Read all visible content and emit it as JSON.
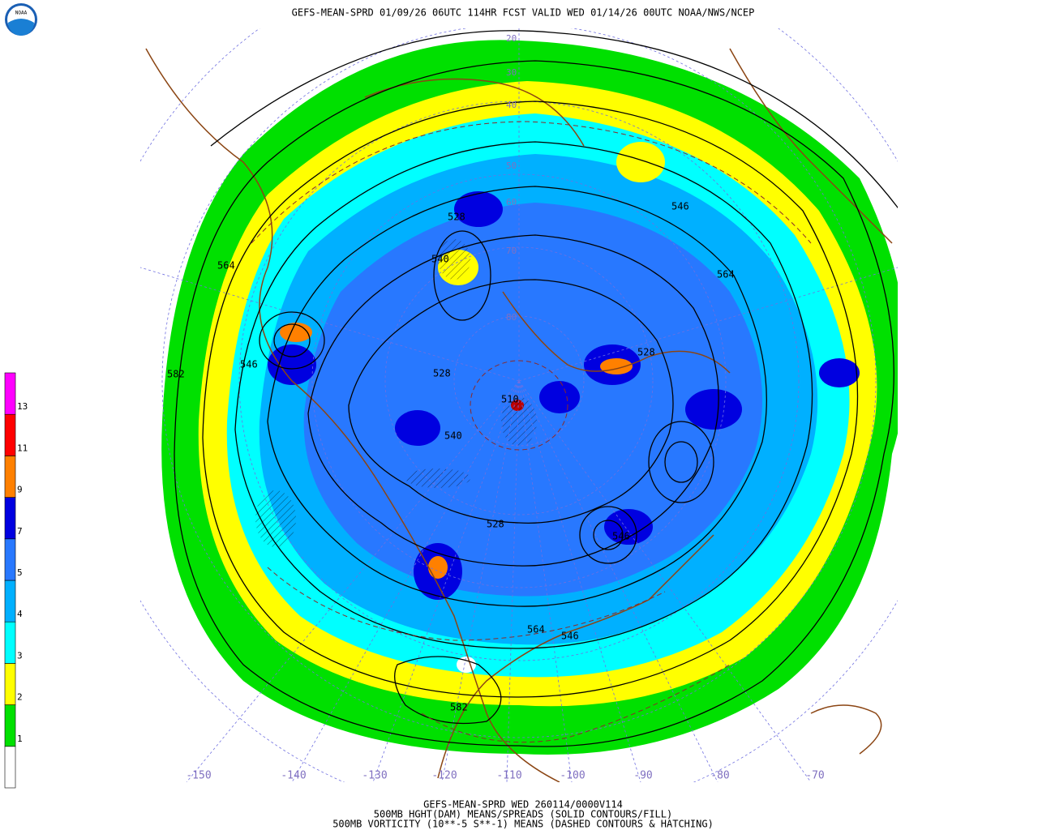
{
  "header": {
    "title": "GEFS-MEAN-SPRD 01/09/26 06UTC 114HR FCST VALID WED 01/14/26 00UTC NOAA/NWS/NCEP",
    "logo_text": "NOAA"
  },
  "footer": {
    "lines": [
      "GEFS-MEAN-SPRD WED 260114/0000V114",
      "500MB HGHT(DAM) MEANS/SPREADS (SOLID CONTOURS/FILL)",
      "500MB VORTICITY (10**-5 S**-1) MEANS (DASHED CONTOURS & HATCHING)"
    ]
  },
  "colorbar": {
    "labels": [
      "1",
      "2",
      "3",
      "4",
      "5",
      "7",
      "9",
      "11",
      "13"
    ],
    "colors": [
      "#ffffff",
      "#00e000",
      "#ffff00",
      "#00ffff",
      "#00b0ff",
      "#2878ff",
      "#0000e0",
      "#ff8000",
      "#ff0000",
      "#ff00ff"
    ]
  },
  "map": {
    "contour_labels": [
      "528",
      "540",
      "564",
      "546",
      "582",
      "528",
      "546",
      "564",
      "528",
      "540",
      "564",
      "546",
      "582",
      "546",
      "510",
      "528"
    ],
    "longitude_labels": [
      "-150",
      "-140",
      "-130",
      "-120",
      "-110",
      "-100",
      "-90",
      "-80",
      "-70"
    ],
    "latitude_labels": [
      "20",
      "30",
      "40",
      "50",
      "60",
      "70",
      "80"
    ]
  }
}
